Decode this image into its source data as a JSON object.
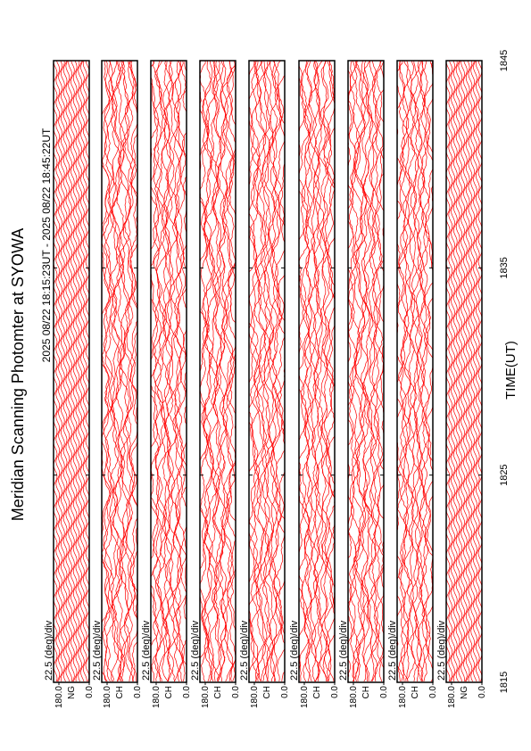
{
  "chart_data": {
    "type": "line",
    "title": "Meridian Scanning Photomter at SYOWA",
    "subtitle": "2025 08/22 18:15:23UT - 2025 08/22 18:45:22UT",
    "xlabel": "TIME(UT)",
    "xlim": [
      1815,
      1845
    ],
    "xticks": [
      1815,
      1825,
      1835,
      1845
    ],
    "color": "#ff0000",
    "panels": [
      {
        "channel": "NG",
        "scale": "22.5 (deg)/div",
        "ylim": [
          0,
          180
        ],
        "yticks": [
          {
            "value": 180,
            "label": "180.0"
          },
          {
            "value": 0,
            "label": "0.0"
          }
        ]
      },
      {
        "channel": "CH",
        "scale": "22.5 (deg)/div",
        "ylim": [
          0,
          180
        ],
        "yticks": [
          {
            "value": 180,
            "label": "180.0"
          },
          {
            "value": 0,
            "label": "0.0"
          }
        ]
      },
      {
        "channel": "CH",
        "scale": "22.5 (deg)/div",
        "ylim": [
          0,
          180
        ],
        "yticks": [
          {
            "value": 180,
            "label": "180.0"
          },
          {
            "value": 0,
            "label": "0.0"
          }
        ]
      },
      {
        "channel": "CH",
        "scale": "22.5 (deg)/div",
        "ylim": [
          0,
          180
        ],
        "yticks": [
          {
            "value": 180,
            "label": "180.0"
          },
          {
            "value": 0,
            "label": "0.0"
          }
        ]
      },
      {
        "channel": "CH",
        "scale": "22.5 (deg)/div",
        "ylim": [
          0,
          180
        ],
        "yticks": [
          {
            "value": 180,
            "label": "180.0"
          },
          {
            "value": 0,
            "label": "0.0"
          }
        ]
      },
      {
        "channel": "CH",
        "scale": "22.5 (deg)/div",
        "ylim": [
          0,
          180
        ],
        "yticks": [
          {
            "value": 180,
            "label": "180.0"
          },
          {
            "value": 0,
            "label": "0.0"
          }
        ]
      },
      {
        "channel": "CH",
        "scale": "22.5 (deg)/div",
        "ylim": [
          0,
          180
        ],
        "yticks": [
          {
            "value": 180,
            "label": "180.0"
          },
          {
            "value": 0,
            "label": "0.0"
          }
        ]
      },
      {
        "channel": "CH",
        "scale": "22.5 (deg)/div",
        "ylim": [
          0,
          180
        ],
        "yticks": [
          {
            "value": 180,
            "label": "180.0"
          },
          {
            "value": 0,
            "label": "0.0"
          }
        ]
      },
      {
        "channel": "NG",
        "scale": "22.5 (deg)/div",
        "ylim": [
          0,
          180
        ],
        "yticks": [
          {
            "value": 180,
            "label": "180.0"
          },
          {
            "value": 0,
            "label": "0.0"
          }
        ]
      }
    ]
  }
}
